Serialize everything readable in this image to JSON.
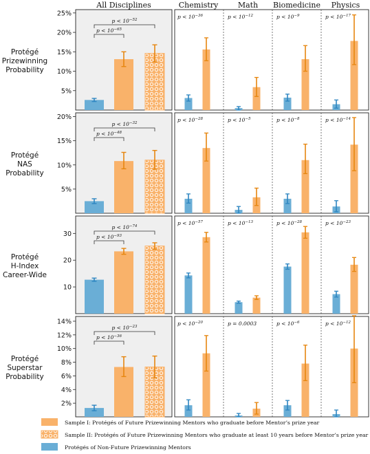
{
  "chart_data": {
    "type": "bar",
    "columns": [
      "All Disciplines",
      "Chemistry",
      "Math",
      "Biomedicine",
      "Physics"
    ],
    "colors": {
      "sample1": "#f9b26a",
      "sample2": "#f9b26a",
      "nonfuture": "#6aaed6",
      "sample1_err": "#e6860f",
      "nonfuture_err": "#2e86c1",
      "panel_bg_all": "#efefef"
    },
    "legend": [
      {
        "key": "sample1",
        "label": "Sample I: Protégés of Future Prizewinning Mentors who graduate before Mentor’s prize year",
        "style": "solid-orange"
      },
      {
        "key": "sample2",
        "label": "Sample II: Protégés of Future Prizewinning Mentors who graduate at least 10 years before Mentor’s prize year",
        "style": "hatched-orange-circles"
      },
      {
        "key": "nonfuture",
        "label": "Protégés of Non-Future Prizewinning Mentors",
        "style": "solid-blue"
      }
    ],
    "rows": [
      {
        "label": [
          "Protégé",
          "Prizewinning",
          "Probability"
        ],
        "ylim": [
          0,
          25.5
        ],
        "ticks": [
          5,
          10,
          15,
          20,
          25
        ],
        "tick_labels": [
          "5%",
          "10%",
          "15%",
          "20%",
          "25%"
        ],
        "all": {
          "values": [
            2.6,
            13.1,
            14.6
          ],
          "err": [
            [
              2.2,
              3.0
            ],
            [
              11.2,
              15.0
            ],
            [
              12.4,
              16.8
            ]
          ],
          "brackets": [
            {
              "label": "p < 10",
              "exp": "−65",
              "level": 0
            },
            {
              "label": "p < 10",
              "exp": "−52",
              "level": 1
            }
          ]
        },
        "disciplines": [
          {
            "p": "p < 10",
            "exp": "−36",
            "values": [
              3.1,
              15.6
            ],
            "err": [
              [
                2.3,
                3.9
              ],
              [
                12.7,
                18.6
              ]
            ]
          },
          {
            "p": "p < 10",
            "exp": "−12",
            "values": [
              0.5,
              5.9
            ],
            "err": [
              [
                0.0,
                0.9
              ],
              [
                3.5,
                8.4
              ]
            ]
          },
          {
            "p": "p < 10",
            "exp": "−9",
            "values": [
              3.2,
              13.1
            ],
            "err": [
              [
                2.3,
                4.1
              ],
              [
                10.0,
                16.6
              ]
            ]
          },
          {
            "p": "p < 10",
            "exp": "−17",
            "values": [
              1.5,
              17.8
            ],
            "err": [
              [
                0.5,
                2.6
              ],
              [
                11.7,
                24.5
              ]
            ]
          }
        ]
      },
      {
        "label": [
          "Protégé",
          "NAS",
          "Probability"
        ],
        "ylim": [
          0,
          20.5
        ],
        "ticks": [
          5,
          10,
          15,
          20
        ],
        "tick_labels": [
          "5%",
          "10%",
          "15%",
          "20%"
        ],
        "all": {
          "values": [
            2.5,
            10.8,
            11.0
          ],
          "err": [
            [
              2.0,
              3.0
            ],
            [
              9.2,
              12.6
            ],
            [
              9.1,
              13.0
            ]
          ],
          "brackets": [
            {
              "label": "p < 10",
              "exp": "−48",
              "level": 0
            },
            {
              "label": "p < 10",
              "exp": "−32",
              "level": 1
            }
          ]
        },
        "disciplines": [
          {
            "p": "p < 10",
            "exp": "−28",
            "values": [
              3.0,
              13.5
            ],
            "err": [
              [
                2.1,
                4.0
              ],
              [
                10.8,
                16.6
              ]
            ]
          },
          {
            "p": "p < 10",
            "exp": "−5",
            "values": [
              0.7,
              3.3
            ],
            "err": [
              [
                0.0,
                1.4
              ],
              [
                1.6,
                5.2
              ]
            ]
          },
          {
            "p": "p < 10",
            "exp": "−8",
            "values": [
              3.0,
              11.0
            ],
            "err": [
              [
                2.0,
                4.0
              ],
              [
                8.2,
                14.3
              ]
            ]
          },
          {
            "p": "p < 10",
            "exp": "−14",
            "values": [
              1.4,
              14.2
            ],
            "err": [
              [
                0.3,
                2.6
              ],
              [
                8.8,
                19.8
              ]
            ]
          }
        ]
      },
      {
        "label": [
          "Protégé",
          "H-Index",
          "Career-Wide"
        ],
        "ylim": [
          0,
          36
        ],
        "ticks": [
          10,
          20,
          30
        ],
        "tick_labels": [
          "10",
          "20",
          "30"
        ],
        "all": {
          "values": [
            12.7,
            23.3,
            25.3
          ],
          "err": [
            [
              12.1,
              13.3
            ],
            [
              22.2,
              24.4
            ],
            [
              24.1,
              26.5
            ]
          ],
          "brackets": [
            {
              "label": "p < 10",
              "exp": "−93",
              "level": 0
            },
            {
              "label": "p < 10",
              "exp": "−74",
              "level": 1
            }
          ]
        },
        "disciplines": [
          {
            "p": "p < 10",
            "exp": "−57",
            "values": [
              14.3,
              28.6
            ],
            "err": [
              [
                13.4,
                15.2
              ],
              [
                26.8,
                30.4
              ]
            ]
          },
          {
            "p": "p < 10",
            "exp": "−13",
            "values": [
              4.3,
              6.0
            ],
            "err": [
              [
                3.9,
                4.7
              ],
              [
                5.3,
                6.7
              ]
            ]
          },
          {
            "p": "p < 10",
            "exp": "−28",
            "values": [
              17.6,
              30.4
            ],
            "err": [
              [
                16.6,
                18.6
              ],
              [
                28.2,
                32.6
              ]
            ]
          },
          {
            "p": "p < 10",
            "exp": "−23",
            "values": [
              7.3,
              18.3
            ],
            "err": [
              [
                6.2,
                8.4
              ],
              [
                15.8,
                21.0
              ]
            ]
          }
        ]
      },
      {
        "label": [
          "Protégé",
          "Superstar",
          "Probability"
        ],
        "ylim": [
          0,
          14.5
        ],
        "ticks": [
          2,
          4,
          6,
          8,
          10,
          12,
          14
        ],
        "tick_labels": [
          "2%",
          "4%",
          "6%",
          "8%",
          "10%",
          "12%",
          "14%"
        ],
        "all": {
          "values": [
            1.3,
            7.3,
            7.3
          ],
          "err": [
            [
              0.9,
              1.7
            ],
            [
              5.9,
              8.8
            ],
            [
              5.7,
              8.9
            ]
          ],
          "brackets": [
            {
              "label": "p < 10",
              "exp": "−36",
              "level": 0
            },
            {
              "label": "p < 10",
              "exp": "−23",
              "level": 1
            }
          ]
        },
        "disciplines": [
          {
            "p": "p < 10",
            "exp": "−20",
            "values": [
              1.7,
              9.3
            ],
            "err": [
              [
                1.0,
                2.5
              ],
              [
                6.7,
                11.9
              ]
            ]
          },
          {
            "p": "p = 0.0003",
            "exp": "",
            "values": [
              0.2,
              1.2
            ],
            "err": [
              [
                0.0,
                0.5
              ],
              [
                0.4,
                2.1
              ]
            ]
          },
          {
            "p": "p < 10",
            "exp": "−6",
            "values": [
              1.7,
              7.8
            ],
            "err": [
              [
                1.0,
                2.4
              ],
              [
                5.3,
                10.5
              ]
            ]
          },
          {
            "p": "p < 10",
            "exp": "−12",
            "values": [
              0.4,
              10.0
            ],
            "err": [
              [
                0.0,
                1.0
              ],
              [
                5.0,
                14.8
              ]
            ]
          }
        ]
      }
    ]
  }
}
